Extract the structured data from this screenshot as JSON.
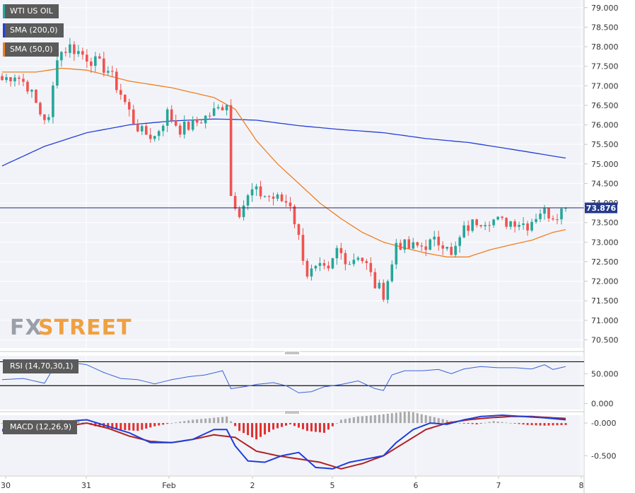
{
  "colors": {
    "bullish": "#26a69a",
    "bearish": "#ef5350",
    "sma200": "#2440d8",
    "sma50": "#f07f22",
    "rsi": "#3a62d7",
    "macd_line": "#1e3edb",
    "signal_line": "#b02222",
    "hist_pos": "#a9a9a9",
    "hist_neg": "#e03030",
    "price_line": "#1f2e7a",
    "price_tag": "#253a8c",
    "legend_bg": "#5b5b5b",
    "legend_wti": "#26a69a",
    "watermark_fx": "#9aa0a8",
    "watermark_street": "#f0a040"
  },
  "legend": {
    "wti": "WTI US OIL",
    "sma200": "SMA (200,0)",
    "sma50": "SMA (50,0)",
    "rsi": "RSI (14,70,30,1)",
    "macd": "MACD (12,26,9)"
  },
  "watermark": {
    "fx": "FX",
    "street": "STREET"
  },
  "price_tag": "73.876",
  "chart_data": [
    {
      "type": "candlestick",
      "name": "WTI US OIL",
      "ylim": [
        70.4,
        79.05
      ],
      "y_ticks": [
        "79.000",
        "78.500",
        "78.000",
        "77.500",
        "77.000",
        "76.500",
        "76.000",
        "75.500",
        "75.000",
        "74.500",
        "74.000",
        "73.500",
        "73.000",
        "72.500",
        "72.000",
        "71.500",
        "71.000",
        "70.500"
      ],
      "x_ticks": [
        "30",
        "31",
        "Feb",
        "2",
        "5",
        "6",
        "7",
        "8"
      ],
      "last_price": 73.876,
      "price_waypoints": [
        [
          0,
          77.15
        ],
        [
          3,
          77.3
        ],
        [
          6,
          77.0
        ],
        [
          9,
          76.3
        ],
        [
          11,
          76.1
        ],
        [
          13,
          77.8
        ],
        [
          16,
          78.0
        ],
        [
          19,
          77.8
        ],
        [
          22,
          77.6
        ],
        [
          25,
          77.4
        ],
        [
          28,
          76.8
        ],
        [
          31,
          76.1
        ],
        [
          33,
          75.8
        ],
        [
          36,
          75.7
        ],
        [
          39,
          76.3
        ],
        [
          42,
          75.9
        ],
        [
          45,
          76.0
        ],
        [
          48,
          76.2
        ],
        [
          51,
          76.4
        ],
        [
          53,
          76.6
        ],
        [
          54,
          74.2
        ],
        [
          56,
          73.8
        ],
        [
          59,
          74.3
        ],
        [
          62,
          74.2
        ],
        [
          65,
          74.1
        ],
        [
          68,
          74.0
        ],
        [
          70,
          73.1
        ],
        [
          72,
          72.2
        ],
        [
          75,
          72.3
        ],
        [
          77,
          72.2
        ],
        [
          79,
          72.8
        ],
        [
          82,
          72.5
        ],
        [
          84,
          72.7
        ],
        [
          86,
          72.4
        ],
        [
          88,
          71.9
        ],
        [
          90,
          71.7
        ],
        [
          92,
          72.4
        ],
        [
          93,
          73.0
        ],
        [
          96,
          72.85
        ],
        [
          99,
          72.9
        ],
        [
          102,
          73.0
        ],
        [
          105,
          73.0
        ],
        [
          106,
          72.6
        ],
        [
          109,
          73.3
        ],
        [
          112,
          73.55
        ],
        [
          115,
          73.6
        ],
        [
          118,
          73.5
        ],
        [
          121,
          73.55
        ],
        [
          124,
          73.45
        ],
        [
          127,
          73.8
        ],
        [
          130,
          73.7
        ],
        [
          133,
          73.87
        ]
      ],
      "sma200": [
        [
          0,
          74.95
        ],
        [
          10,
          75.45
        ],
        [
          20,
          75.8
        ],
        [
          30,
          76.0
        ],
        [
          40,
          76.1
        ],
        [
          50,
          76.15
        ],
        [
          55,
          76.14
        ],
        [
          60,
          76.12
        ],
        [
          70,
          75.98
        ],
        [
          80,
          75.88
        ],
        [
          90,
          75.8
        ],
        [
          100,
          75.65
        ],
        [
          110,
          75.55
        ],
        [
          120,
          75.38
        ],
        [
          133,
          75.15
        ]
      ],
      "sma50": [
        [
          0,
          77.35
        ],
        [
          8,
          77.35
        ],
        [
          14,
          77.45
        ],
        [
          20,
          77.4
        ],
        [
          30,
          77.12
        ],
        [
          40,
          76.95
        ],
        [
          50,
          76.7
        ],
        [
          55,
          76.4
        ],
        [
          60,
          75.6
        ],
        [
          65,
          75.0
        ],
        [
          70,
          74.5
        ],
        [
          75,
          74.0
        ],
        [
          80,
          73.6
        ],
        [
          85,
          73.25
        ],
        [
          90,
          73.0
        ],
        [
          95,
          72.85
        ],
        [
          100,
          72.72
        ],
        [
          105,
          72.62
        ],
        [
          110,
          72.62
        ],
        [
          115,
          72.8
        ],
        [
          120,
          72.93
        ],
        [
          125,
          73.05
        ],
        [
          130,
          73.25
        ],
        [
          133,
          73.32
        ]
      ]
    },
    {
      "type": "line",
      "name": "RSI (14,70,30,1)",
      "ylim": [
        -10,
        80
      ],
      "y_ticks": [
        "50.000",
        "0.000"
      ],
      "levels": [
        70,
        30
      ],
      "series": [
        [
          0,
          40
        ],
        [
          5,
          42
        ],
        [
          10,
          34
        ],
        [
          13,
          70
        ],
        [
          16,
          69
        ],
        [
          20,
          65
        ],
        [
          24,
          52
        ],
        [
          28,
          42
        ],
        [
          32,
          40
        ],
        [
          36,
          33
        ],
        [
          40,
          40
        ],
        [
          44,
          45
        ],
        [
          48,
          48
        ],
        [
          52,
          55
        ],
        [
          54,
          25
        ],
        [
          57,
          28
        ],
        [
          60,
          32
        ],
        [
          64,
          35
        ],
        [
          67,
          30
        ],
        [
          70,
          18
        ],
        [
          73,
          20
        ],
        [
          76,
          28
        ],
        [
          80,
          32
        ],
        [
          84,
          38
        ],
        [
          88,
          25
        ],
        [
          90,
          22
        ],
        [
          92,
          48
        ],
        [
          95,
          55
        ],
        [
          99,
          55
        ],
        [
          103,
          57
        ],
        [
          106,
          50
        ],
        [
          109,
          58
        ],
        [
          113,
          62
        ],
        [
          117,
          60
        ],
        [
          121,
          60
        ],
        [
          125,
          58
        ],
        [
          128,
          65
        ],
        [
          130,
          57
        ],
        [
          133,
          62
        ]
      ]
    },
    {
      "type": "macd",
      "name": "MACD (12,26,9)",
      "ylim": [
        -0.8,
        0.12
      ],
      "y_ticks": [
        "-0.000",
        "-0.500"
      ],
      "macd": [
        [
          0,
          -0.12
        ],
        [
          5,
          -0.08
        ],
        [
          10,
          -0.15
        ],
        [
          14,
          0.02
        ],
        [
          20,
          0.05
        ],
        [
          25,
          -0.05
        ],
        [
          30,
          -0.15
        ],
        [
          35,
          -0.3
        ],
        [
          40,
          -0.3
        ],
        [
          45,
          -0.25
        ],
        [
          50,
          -0.1
        ],
        [
          53,
          -0.1
        ],
        [
          55,
          -0.35
        ],
        [
          58,
          -0.58
        ],
        [
          62,
          -0.6
        ],
        [
          66,
          -0.5
        ],
        [
          70,
          -0.45
        ],
        [
          74,
          -0.68
        ],
        [
          78,
          -0.7
        ],
        [
          82,
          -0.6
        ],
        [
          86,
          -0.55
        ],
        [
          90,
          -0.5
        ],
        [
          93,
          -0.3
        ],
        [
          97,
          -0.1
        ],
        [
          101,
          0.0
        ],
        [
          105,
          -0.02
        ],
        [
          109,
          0.05
        ],
        [
          113,
          0.1
        ],
        [
          118,
          0.12
        ],
        [
          123,
          0.1
        ],
        [
          128,
          0.08
        ],
        [
          133,
          0.05
        ]
      ],
      "signal": [
        [
          0,
          -0.1
        ],
        [
          5,
          -0.1
        ],
        [
          10,
          -0.1
        ],
        [
          15,
          -0.05
        ],
        [
          20,
          0.0
        ],
        [
          25,
          -0.08
        ],
        [
          30,
          -0.2
        ],
        [
          35,
          -0.28
        ],
        [
          40,
          -0.3
        ],
        [
          45,
          -0.25
        ],
        [
          50,
          -0.18
        ],
        [
          55,
          -0.22
        ],
        [
          60,
          -0.43
        ],
        [
          65,
          -0.5
        ],
        [
          70,
          -0.55
        ],
        [
          75,
          -0.6
        ],
        [
          80,
          -0.7
        ],
        [
          85,
          -0.62
        ],
        [
          90,
          -0.5
        ],
        [
          95,
          -0.3
        ],
        [
          100,
          -0.1
        ],
        [
          105,
          0.0
        ],
        [
          110,
          0.05
        ],
        [
          115,
          0.08
        ],
        [
          120,
          0.1
        ],
        [
          125,
          0.1
        ],
        [
          130,
          0.08
        ],
        [
          133,
          0.07
        ]
      ],
      "hist": [
        [
          0,
          0.0
        ],
        [
          10,
          -0.03
        ],
        [
          14,
          0.05
        ],
        [
          18,
          0.03
        ],
        [
          22,
          -0.05
        ],
        [
          27,
          -0.1
        ],
        [
          32,
          -0.12
        ],
        [
          36,
          -0.05
        ],
        [
          40,
          0.0
        ],
        [
          45,
          0.05
        ],
        [
          50,
          0.08
        ],
        [
          53,
          0.1
        ],
        [
          56,
          -0.12
        ],
        [
          60,
          -0.25
        ],
        [
          64,
          -0.1
        ],
        [
          68,
          -0.02
        ],
        [
          72,
          -0.12
        ],
        [
          76,
          -0.15
        ],
        [
          80,
          0.05
        ],
        [
          84,
          0.1
        ],
        [
          88,
          0.12
        ],
        [
          92,
          0.15
        ],
        [
          96,
          0.18
        ],
        [
          100,
          0.12
        ],
        [
          104,
          0.06
        ],
        [
          108,
          0.0
        ],
        [
          112,
          -0.02
        ],
        [
          116,
          0.03
        ],
        [
          120,
          0.0
        ],
        [
          124,
          -0.03
        ],
        [
          128,
          -0.04
        ],
        [
          133,
          -0.03
        ]
      ]
    }
  ]
}
